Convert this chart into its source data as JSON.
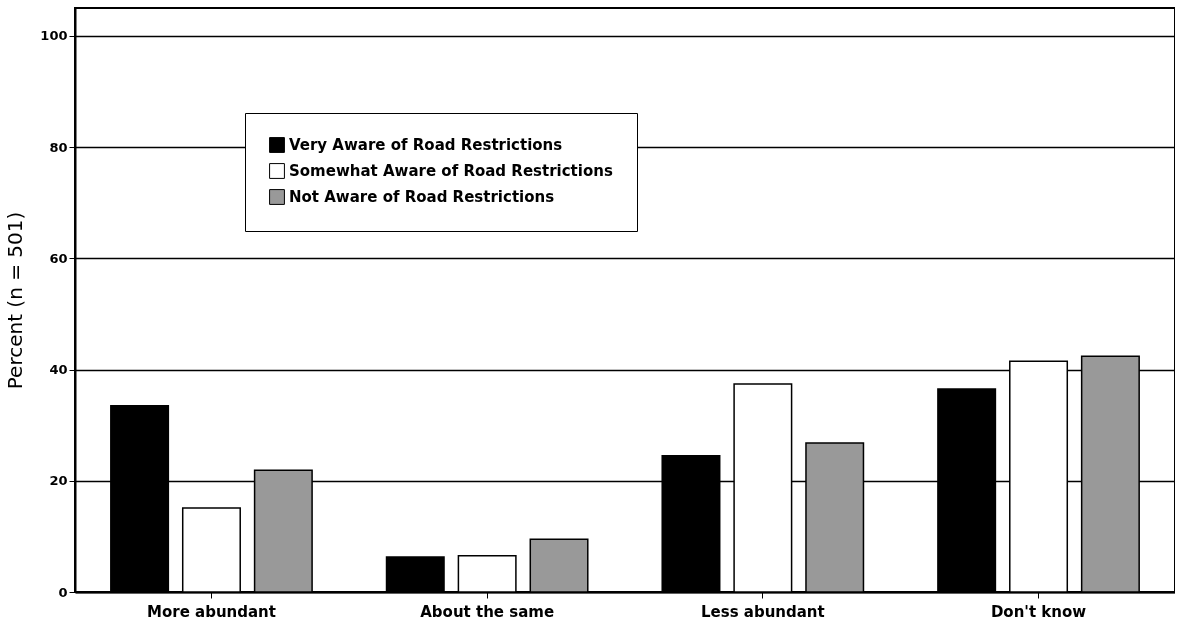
{
  "chart_data": {
    "type": "bar",
    "ylabel": "Percent (n = 501)",
    "categories": [
      "More abundant",
      "About the same",
      "Less abundant",
      "Don't know"
    ],
    "series": [
      {
        "name": "Very Aware of Road Restrictions",
        "color": "#000000",
        "values": [
          33.5,
          6.3,
          24.5,
          36.5
        ]
      },
      {
        "name": "Somewhat Aware of Road Restrictions",
        "color": "#ffffff",
        "values": [
          15.1,
          6.5,
          37.4,
          41.5
        ]
      },
      {
        "name": "Not Aware of Road Restrictions",
        "color": "#999999",
        "values": [
          21.9,
          9.5,
          26.8,
          42.4
        ]
      }
    ],
    "ylim": [
      0,
      105
    ],
    "yticks": [
      0,
      20,
      40,
      60,
      80,
      100
    ],
    "grid": "y",
    "legend": "top left"
  }
}
